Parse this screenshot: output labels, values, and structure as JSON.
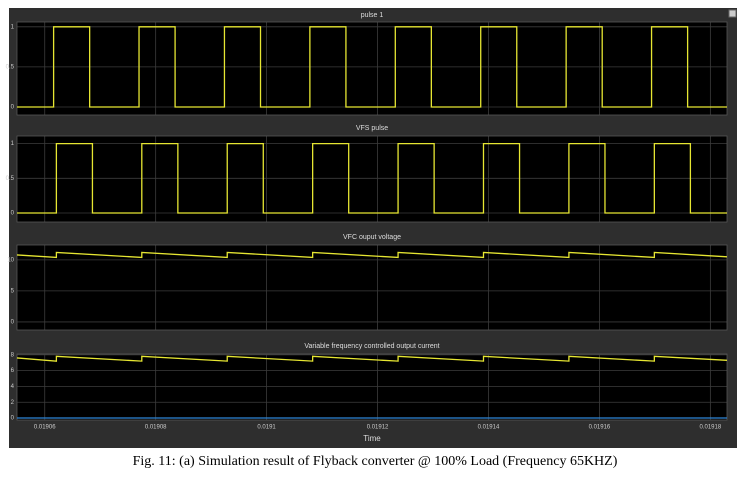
{
  "caption": "Fig. 11: (a) Simulation result of Flyback converter @ 100% Load (Frequency 65KHZ)",
  "chart_data": [
    {
      "type": "line",
      "title": "pulse 1",
      "xlim": [
        0.019055,
        0.019183
      ],
      "xticks": [
        0.01906,
        0.01908,
        0.0191,
        0.01912,
        0.01914,
        0.01916,
        0.01918
      ],
      "xtick_labels": false,
      "ylim": [
        -0.1,
        1.06
      ],
      "yticks": [
        0,
        0.5,
        1
      ],
      "grid": true,
      "x": [
        0.019055,
        0.0190616,
        0.0190616,
        0.0190681,
        0.0190681,
        0.019077,
        0.019077,
        0.0190835,
        0.0190835,
        0.0190924,
        0.0190924,
        0.0190989,
        0.0190989,
        0.0191078,
        0.0191078,
        0.0191143,
        0.0191143,
        0.0191232,
        0.0191232,
        0.0191297,
        0.0191297,
        0.0191386,
        0.0191386,
        0.0191451,
        0.0191451,
        0.019154,
        0.019154,
        0.0191605,
        0.0191605,
        0.0191694,
        0.0191694,
        0.0191759,
        0.0191759,
        0.019183
      ],
      "series": [
        {
          "color": "#e6e632",
          "values": [
            0,
            0,
            1,
            1,
            0,
            0,
            1,
            1,
            0,
            0,
            1,
            1,
            0,
            0,
            1,
            1,
            0,
            0,
            1,
            1,
            0,
            0,
            1,
            1,
            0,
            0,
            1,
            1,
            0,
            0,
            1,
            1,
            0,
            0
          ]
        }
      ]
    },
    {
      "type": "line",
      "title": "VFS pulse",
      "xlim": [
        0.019055,
        0.019183
      ],
      "xticks": [
        0.01906,
        0.01908,
        0.0191,
        0.01912,
        0.01914,
        0.01916,
        0.01918
      ],
      "xtick_labels": false,
      "ylim": [
        -0.13,
        1.11
      ],
      "yticks": [
        0,
        0.5,
        1
      ],
      "grid": true,
      "x": [
        0.019055,
        0.0190621,
        0.0190621,
        0.0190686,
        0.0190686,
        0.0190775,
        0.0190775,
        0.019084,
        0.019084,
        0.0190929,
        0.0190929,
        0.0190994,
        0.0190994,
        0.0191083,
        0.0191083,
        0.0191148,
        0.0191148,
        0.0191237,
        0.0191237,
        0.0191302,
        0.0191302,
        0.0191391,
        0.0191391,
        0.0191456,
        0.0191456,
        0.0191545,
        0.0191545,
        0.019161,
        0.019161,
        0.0191699,
        0.0191699,
        0.0191764,
        0.0191764,
        0.019183
      ],
      "series": [
        {
          "color": "#e6e632",
          "values": [
            0,
            0,
            1,
            1,
            0,
            0,
            1,
            1,
            0,
            0,
            1,
            1,
            0,
            0,
            1,
            1,
            0,
            0,
            1,
            1,
            0,
            0,
            1,
            1,
            0,
            0,
            1,
            1,
            0,
            0,
            1,
            1,
            0,
            0
          ]
        }
      ]
    },
    {
      "type": "line",
      "title": "VFC ouput voltage",
      "xlim": [
        0.019055,
        0.019183
      ],
      "xticks": [
        0.01906,
        0.01908,
        0.0191,
        0.01912,
        0.01914,
        0.01916,
        0.01918
      ],
      "xtick_labels": false,
      "ylim": [
        -1.3,
        12.4
      ],
      "yticks": [
        0,
        5,
        10
      ],
      "grid": true,
      "x": [
        0.019055,
        0.0190621,
        0.0190621,
        0.0190775,
        0.0190775,
        0.0190929,
        0.0190929,
        0.0191083,
        0.0191083,
        0.0191237,
        0.0191237,
        0.0191391,
        0.0191391,
        0.0191545,
        0.0191545,
        0.0191699,
        0.0191699,
        0.019183
      ],
      "series": [
        {
          "color": "#e6e632",
          "values": [
            10.8,
            10.4,
            11.2,
            10.4,
            11.2,
            10.4,
            11.2,
            10.4,
            11.2,
            10.4,
            11.2,
            10.4,
            11.2,
            10.4,
            11.2,
            10.4,
            11.2,
            10.5
          ]
        }
      ]
    },
    {
      "type": "line",
      "title": "Variable frequency controlled output current",
      "xlabel": "Time",
      "xlim": [
        0.019055,
        0.019183
      ],
      "xticks": [
        0.01906,
        0.01908,
        0.0191,
        0.01912,
        0.01914,
        0.01916,
        0.01918
      ],
      "xtick_labels": true,
      "ylim": [
        -0.25,
        8.1
      ],
      "yticks": [
        0,
        2,
        4,
        6,
        8
      ],
      "grid": true,
      "x": [
        0.019055,
        0.0190621,
        0.0190621,
        0.0190775,
        0.0190775,
        0.0190929,
        0.0190929,
        0.0191083,
        0.0191083,
        0.0191237,
        0.0191237,
        0.0191391,
        0.0191391,
        0.0191545,
        0.0191545,
        0.0191699,
        0.0191699,
        0.019183
      ],
      "series": [
        {
          "color": "#e6e632",
          "values": [
            7.6,
            7.2,
            7.8,
            7.2,
            7.8,
            7.2,
            7.8,
            7.2,
            7.8,
            7.2,
            7.8,
            7.2,
            7.8,
            7.2,
            7.8,
            7.2,
            7.8,
            7.3
          ]
        },
        {
          "color": "#2f86d8",
          "values": [
            0,
            0,
            0,
            0,
            0,
            0,
            0,
            0,
            0,
            0,
            0,
            0,
            0,
            0,
            0,
            0,
            0,
            0
          ]
        }
      ]
    }
  ]
}
